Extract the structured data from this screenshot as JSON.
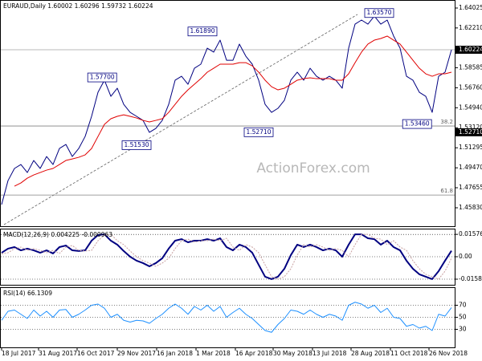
{
  "chart_data": [
    {
      "type": "line",
      "title": "EURAUD,Daily  1.60002 1.60296 1.59732 1.60224",
      "xlim": [
        0,
        70
      ],
      "ylim": [
        1.44149,
        1.64756
      ],
      "yticks": [
        1.64025,
        {
          "value": 1.6221,
          "label": "1.62210"
        },
        1.58585,
        {
          "value": 1.5676,
          "label": "1.56760"
        },
        {
          "value": 1.5494,
          "label": "1.54940"
        },
        {
          "value": 1.5312,
          "label": "1.53120"
        },
        1.51295,
        {
          "value": 1.4947,
          "label": "1.49470"
        },
        1.47655,
        {
          "value": 1.4583,
          "label": "1.45830"
        }
      ],
      "series": [
        {
          "color": "#000080",
          "values": [
            1.4612,
            1.4831,
            1.4941,
            1.4977,
            1.4904,
            1.5014,
            1.4941,
            1.505,
            1.4977,
            1.5123,
            1.516,
            1.505,
            1.5123,
            1.5233,
            1.5416,
            1.5635,
            1.5745,
            1.5598,
            1.5672,
            1.5525,
            1.5452,
            1.5416,
            1.5379,
            1.527,
            1.5306,
            1.5379,
            1.5525,
            1.5745,
            1.5781,
            1.5708,
            1.5854,
            1.5891,
            1.6037,
            1.6001,
            1.611,
            1.5927,
            1.5927,
            1.6074,
            1.5964,
            1.5891,
            1.5745,
            1.5525,
            1.5452,
            1.5489,
            1.5562,
            1.5745,
            1.5818,
            1.5745,
            1.5854,
            1.5781,
            1.5745,
            1.5781,
            1.5745,
            1.5672,
            1.6037,
            1.6256,
            1.6293,
            1.6256,
            1.6329,
            1.6256,
            1.6293,
            1.6147,
            1.6037,
            1.5781,
            1.5745,
            1.5635,
            1.5598,
            1.5452,
            1.5781,
            1.5818,
            1.60224
          ]
        },
        {
          "color": "#e00000",
          "values": [
            null,
            null,
            1.478,
            1.4809,
            1.4853,
            1.4882,
            1.4904,
            1.4926,
            1.4941,
            1.4977,
            1.5014,
            1.5028,
            1.5043,
            1.5065,
            1.5123,
            1.5233,
            1.5343,
            1.5394,
            1.5416,
            1.543,
            1.5416,
            1.5401,
            1.5379,
            1.5365,
            1.5379,
            1.5394,
            1.5452,
            1.5525,
            1.5598,
            1.5657,
            1.5708,
            1.5759,
            1.5818,
            1.5854,
            1.5891,
            1.5891,
            1.5891,
            1.5905,
            1.5905,
            1.5876,
            1.5818,
            1.5745,
            1.5686,
            1.5657,
            1.5672,
            1.5708,
            1.5745,
            1.5759,
            1.5767,
            1.5759,
            1.5759,
            1.5759,
            1.5745,
            1.5745,
            1.5803,
            1.5905,
            1.6001,
            1.6074,
            1.611,
            1.6125,
            1.6147,
            1.611,
            1.6074,
            1.6001,
            1.5927,
            1.5854,
            1.5803,
            1.5781,
            1.5803,
            1.5803,
            1.5818
          ]
        }
      ],
      "levels": [
        {
          "label": "38.2",
          "value": 1.5328
        },
        {
          "label": "61.8",
          "value": 1.4699
        }
      ],
      "price_marks": [
        {
          "label": "1.60224",
          "value": 1.60224
        },
        {
          "label": "1.52710",
          "value": 1.5271
        }
      ],
      "annotations": [
        {
          "label": "1.63570",
          "value": 1.6357,
          "x": 61
        },
        {
          "label": "1.61890",
          "value": 1.6189,
          "x": 33.5
        },
        {
          "label": "1.57700",
          "value": 1.577,
          "x": 17.9
        },
        {
          "label": "1.51530",
          "value": 1.5153,
          "x": 23.25
        },
        {
          "label": "1.52710",
          "value": 1.5271,
          "x": 42.25
        },
        {
          "label": "1.53460",
          "value": 1.5346,
          "x": 66.9
        }
      ],
      "watermark": "ActionForex.com"
    },
    {
      "type": "line",
      "title": "MACD(12,26,9) 0.004225 -0.000963",
      "xlim": [
        0,
        70
      ],
      "ylim": [
        -0.0198,
        0.0198
      ],
      "yticks": [
        0.015762,
        {
          "value": 0,
          "label": "0.00"
        },
        -0.015834
      ],
      "grid": true,
      "series": [
        {
          "color": "#000080",
          "width": 2,
          "values": [
            0.0028,
            0.0057,
            0.0068,
            0.0045,
            0.0057,
            0.0045,
            0.0028,
            0.0045,
            0.0023,
            0.0068,
            0.0079,
            0.0045,
            0.004,
            0.0045,
            0.0113,
            0.0153,
            0.0158,
            0.0113,
            0.0085,
            0.004,
            0,
            -0.0028,
            -0.0045,
            -0.0068,
            -0.0045,
            -0.0011,
            0.0057,
            0.0113,
            0.0124,
            0.0102,
            0.0113,
            0.0113,
            0.0124,
            0.0113,
            0.013,
            0.0068,
            0.0045,
            0.0085,
            0.0068,
            0.0028,
            -0.0057,
            -0.0141,
            -0.0158,
            -0.0141,
            -0.0085,
            0.0011,
            0.0085,
            0.0068,
            0.0085,
            0.0068,
            0.0045,
            0.0057,
            0.0045,
            0,
            0.0085,
            0.0158,
            0.0158,
            0.013,
            0.0124,
            0.0085,
            0.0113,
            0.0068,
            0.0045,
            -0.0028,
            -0.0085,
            -0.0124,
            -0.0141,
            -0.0158,
            -0.0102,
            -0.0028,
            0.0042
          ]
        },
        {
          "color": "#c8a0a0",
          "width": 1,
          "dash": true,
          "values": [
            0.002,
            0.0028,
            0.0057,
            0.0068,
            0.0045,
            0.0057,
            0.0045,
            0.0028,
            0.0045,
            0.0023,
            0.0068,
            0.0079,
            0.0045,
            0.004,
            0.0045,
            0.0113,
            0.0153,
            0.0158,
            0.0113,
            0.0085,
            0.004,
            0,
            -0.0028,
            -0.0045,
            -0.0068,
            -0.0045,
            -0.0011,
            0.0057,
            0.0113,
            0.0124,
            0.0102,
            0.0113,
            0.0113,
            0.0124,
            0.0113,
            0.013,
            0.0068,
            0.0045,
            0.0085,
            0.0068,
            0.0028,
            -0.0057,
            -0.0141,
            -0.0158,
            -0.0141,
            -0.0085,
            0.0011,
            0.0085,
            0.0068,
            0.0085,
            0.0068,
            0.0045,
            0.0057,
            0.0045,
            0,
            0.0085,
            0.0158,
            0.0158,
            0.013,
            0.0124,
            0.0085,
            0.0113,
            0.0068,
            0.0045,
            -0.0028,
            -0.0085,
            -0.0124,
            -0.0141,
            -0.0158,
            -0.0102,
            -0.001
          ]
        }
      ]
    },
    {
      "type": "line",
      "title": "RSI(14) 66.1309",
      "xlim": [
        0,
        70
      ],
      "ylim": [
        0,
        100
      ],
      "yticks": [
        70,
        50,
        30
      ],
      "grid": true,
      "series": [
        {
          "color": "#1e90ff",
          "width": 1,
          "values": [
            45,
            60,
            62,
            55,
            48,
            62,
            52,
            60,
            50,
            62,
            63,
            50,
            55,
            62,
            70,
            72,
            65,
            50,
            55,
            45,
            42,
            45,
            44,
            40,
            48,
            55,
            65,
            72,
            65,
            55,
            68,
            62,
            70,
            60,
            68,
            50,
            58,
            65,
            55,
            48,
            38,
            28,
            25,
            38,
            48,
            62,
            60,
            55,
            62,
            55,
            50,
            55,
            52,
            45,
            70,
            75,
            72,
            65,
            70,
            58,
            65,
            50,
            48,
            35,
            38,
            32,
            35,
            28,
            55,
            52,
            66.1309
          ]
        }
      ],
      "xticks": [
        {
          "value": 0,
          "label": "18 Jul 2017"
        },
        {
          "value": 5.75,
          "label": "31 Aug 2017"
        },
        {
          "value": 11.75,
          "label": "16 Oct 2017"
        },
        {
          "value": 18,
          "label": "29 Nov 2017"
        },
        {
          "value": 24.125,
          "label": "16 Jan 2018"
        },
        {
          "value": 30.25,
          "label": "1 Mar 2018"
        },
        {
          "value": 36.375,
          "label": "16 Apr 2018"
        },
        {
          "value": 42.25,
          "label": "30 May 2018"
        },
        {
          "value": 48.375,
          "label": "13 Jul 2018"
        },
        {
          "value": 54.375,
          "label": "28 Aug 2018"
        },
        {
          "value": 60.5,
          "label": "11 Oct 2018"
        },
        {
          "value": 66.5,
          "label": "26 Nov 2018"
        }
      ]
    }
  ]
}
